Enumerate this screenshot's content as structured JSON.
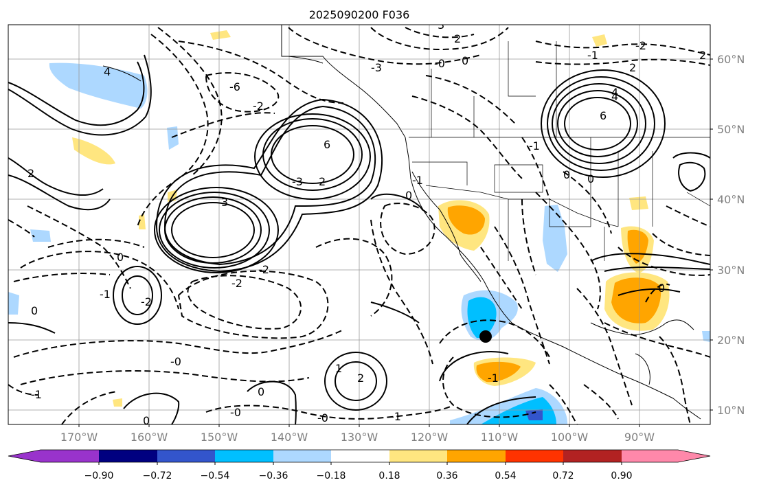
{
  "title": "2025090200 F036",
  "lon_labels": [
    "170°W",
    "160°W",
    "150°W",
    "140°W",
    "130°W",
    "120°W",
    "110°W",
    "100°W",
    "90°W"
  ],
  "lat_labels": [
    "60°N",
    "50°N",
    "40°N",
    "30°N",
    "20°N",
    "10°N"
  ],
  "colorbar": {
    "colors": [
      "#9933cc",
      "#000080",
      "#3355cc",
      "#00bfff",
      "#add8ff",
      "#ffffff",
      "#ffe680",
      "#ffa500",
      "#ff3300",
      "#b22222",
      "#ff88aa"
    ],
    "ticks": [
      "−0.90",
      "−0.72",
      "−0.54",
      "−0.36",
      "−0.18",
      "0.18",
      "0.36",
      "0.54",
      "0.72",
      "0.90"
    ]
  },
  "contour_labels": [
    "3",
    "2",
    "0",
    "-3",
    "4",
    "-6",
    "-1",
    "2",
    "-2",
    "6",
    "-3",
    "2",
    "3",
    "-2",
    "-2",
    "-0",
    "2",
    "4",
    "-1",
    "0",
    "0",
    "0",
    "-1",
    "0",
    "-0",
    "-1",
    "0",
    "2",
    "6",
    "4",
    "0",
    "-0",
    "-2",
    "0",
    "-1",
    "0",
    "1",
    "-1",
    "2",
    "-2",
    "-0",
    "-1"
  ],
  "marker": "storm-center"
}
